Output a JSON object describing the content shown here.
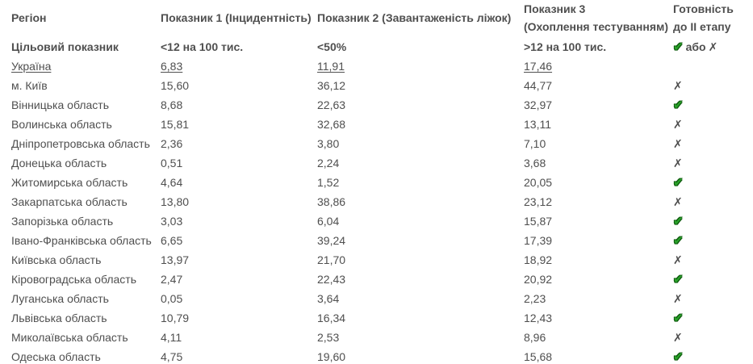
{
  "header": {
    "col_region": "Регіон",
    "col_p1": "Показник 1 (Інцидентність)",
    "col_p2": "Показник 2 (Завантаженість ліжок)",
    "col_p3_line1": "Показник 3",
    "col_p3_line2": "(Охоплення тестуванням)",
    "col_ready_line1": "Готовність",
    "col_ready_line2": "до II етапу",
    "ready_or": "або"
  },
  "icons": {
    "check_glyph": "✔",
    "x_glyph": "✗"
  },
  "colors": {
    "text": "#4f4f4f",
    "check_green": "#2aa22a",
    "check_outline": "#0c5a0c",
    "x_gray": "#4d4d4d",
    "background": "#ffffff"
  },
  "chart_data": {
    "type": "table",
    "title": "",
    "columns": [
      "Регіон",
      "Показник 1 (Інцидентність)",
      "Показник 2 (Завантаженість ліжок)",
      "Показник 3 (Охоплення тестуванням)",
      "Готовність до II етапу"
    ],
    "target_row": {
      "region": "Цільовий показник",
      "p1": "<12 на 100 тис.",
      "p2": "<50%",
      "p3": ">12 на 100 тис.",
      "status": "check або x"
    },
    "rows": [
      {
        "region": "Україна",
        "p1": "6,83",
        "p2": "11,91",
        "p3": "17,46",
        "status": "",
        "link": true
      },
      {
        "region": "м. Київ",
        "p1": "15,60",
        "p2": "36,12",
        "p3": "44,77",
        "status": "x"
      },
      {
        "region": "Вінницька область",
        "p1": "8,68",
        "p2": "22,63",
        "p3": "32,97",
        "status": "check"
      },
      {
        "region": "Волинська область",
        "p1": "15,81",
        "p2": "32,68",
        "p3": "13,11",
        "status": "x"
      },
      {
        "region": "Дніпропетровська область",
        "p1": "2,36",
        "p2": "3,80",
        "p3": "7,10",
        "status": "x"
      },
      {
        "region": "Донецька область",
        "p1": "0,51",
        "p2": "2,24",
        "p3": "3,68",
        "status": "x"
      },
      {
        "region": "Житомирська область",
        "p1": "4,64",
        "p2": "1,52",
        "p3": "20,05",
        "status": "check"
      },
      {
        "region": "Закарпатська область",
        "p1": "13,80",
        "p2": "38,86",
        "p3": "23,12",
        "status": "x"
      },
      {
        "region": "Запорізька область",
        "p1": "3,03",
        "p2": "6,04",
        "p3": "15,87",
        "status": "check"
      },
      {
        "region": "Івано-Франківська область",
        "p1": "6,65",
        "p2": "39,24",
        "p3": "17,39",
        "status": "check"
      },
      {
        "region": "Київська область",
        "p1": "13,97",
        "p2": "21,70",
        "p3": "18,92",
        "status": "x"
      },
      {
        "region": "Кіровоградська область",
        "p1": "2,47",
        "p2": "22,43",
        "p3": "20,92",
        "status": "check"
      },
      {
        "region": "Луганська область",
        "p1": "0,05",
        "p2": "3,64",
        "p3": "2,23",
        "status": "x"
      },
      {
        "region": "Львівська область",
        "p1": "10,79",
        "p2": "16,34",
        "p3": "12,43",
        "status": "check"
      },
      {
        "region": "Миколаївська область",
        "p1": "4,11",
        "p2": "2,53",
        "p3": "8,96",
        "status": "x"
      },
      {
        "region": "Одеська область",
        "p1": "4,75",
        "p2": "19,60",
        "p3": "15,68",
        "status": "check"
      }
    ]
  }
}
